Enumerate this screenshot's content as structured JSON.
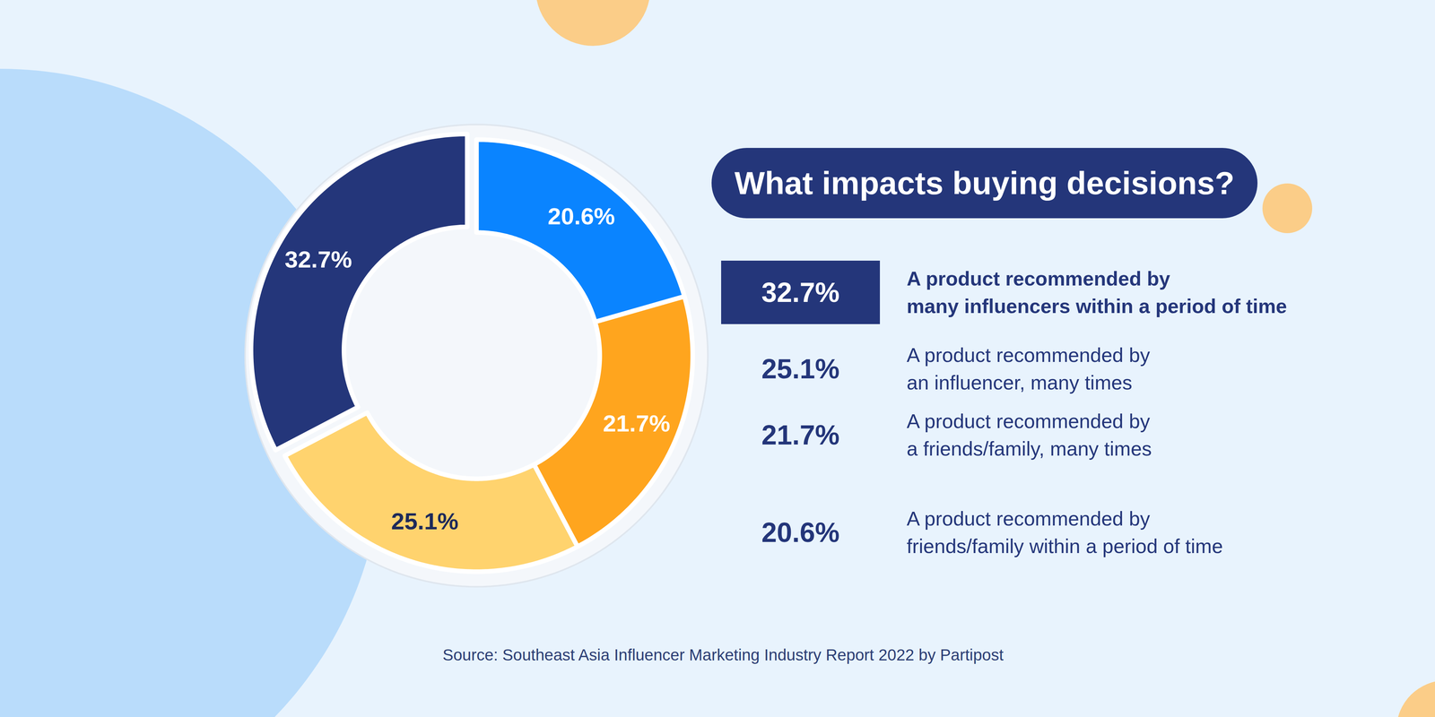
{
  "chart_data": {
    "type": "pie",
    "title": "What impacts buying decisions?",
    "categories": [
      "A product recommended by many influencers within a period of time",
      "A product recommended by an influencer, many times",
      "A product recommended by a friends/family, many times",
      "A product recommended by friends/family within a period of time"
    ],
    "values": [
      32.7,
      25.1,
      21.7,
      20.6
    ],
    "value_labels": [
      "32.7%",
      "25.1%",
      "21.7%",
      "20.6%"
    ],
    "colors": [
      "#24367a",
      "#ffd36e",
      "#ffa51e",
      "#0a84ff"
    ],
    "data_labels": true,
    "legend": "right",
    "source": "Source: Southeast Asia Influencer Marketing Industry Report 2022 by Partipost"
  }
}
